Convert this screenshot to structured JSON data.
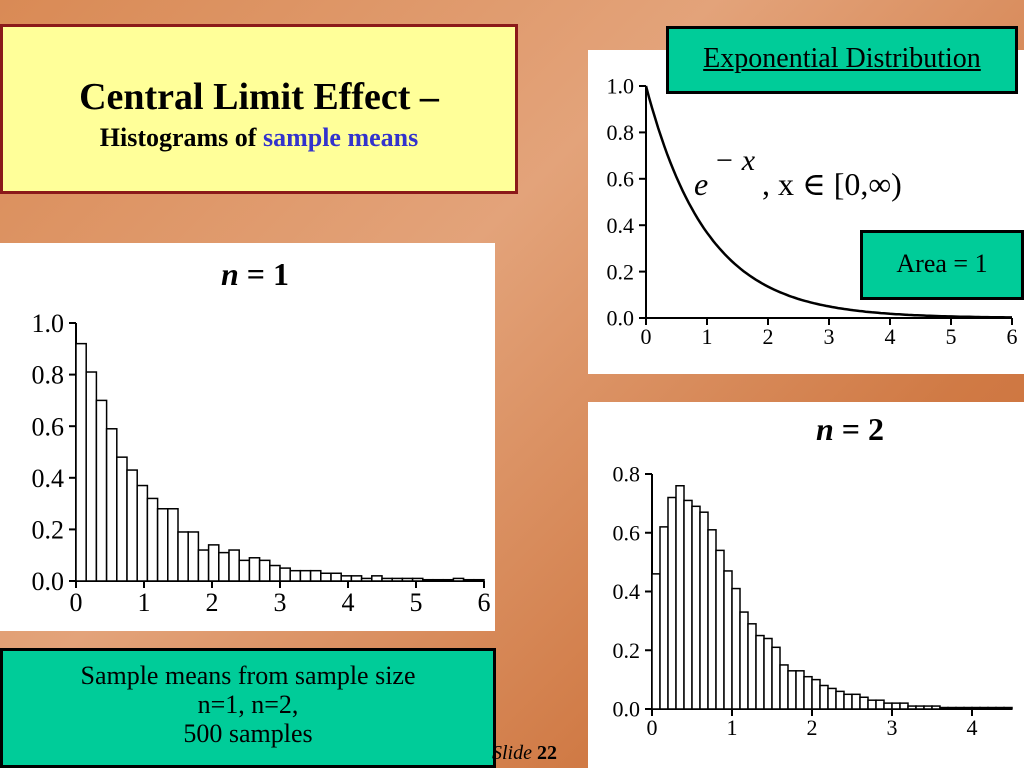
{
  "title": {
    "main": "Central Limit Effect –",
    "sub_prefix": "Histograms of ",
    "sub_highlight": "sample means"
  },
  "expo_label": "Exponential Distribution",
  "formula": {
    "e": "e",
    "exp": "− x",
    "rest": ",  x ∈ [0,∞)"
  },
  "area_label": "Area = 1",
  "sample_box": {
    "line1": "Sample means from sample size",
    "line2": "n=1, n=2,",
    "line3": "500 samples"
  },
  "slide": {
    "word": "Slide",
    "number": "22"
  },
  "colors": {
    "title_bg": "#ffff99",
    "title_border": "#8b1a1a",
    "highlight": "#3333cc",
    "label_bg": "#00cc99"
  },
  "chart_data": [
    {
      "id": "exp_curve",
      "type": "line",
      "function": "e^(-x)",
      "xlim": [
        0,
        6
      ],
      "ylim": [
        0,
        1
      ],
      "xticks": [
        "0",
        "1",
        "2",
        "3",
        "4",
        "5",
        "6"
      ],
      "yticks": [
        "0.0",
        "0.2",
        "0.4",
        "0.6",
        "0.8",
        "1.0"
      ]
    },
    {
      "id": "n1",
      "type": "bar",
      "title_n": "n",
      "title_eq": " = 1",
      "bin_width": 0.15,
      "xlim": [
        0,
        6
      ],
      "ylim": [
        0,
        1
      ],
      "xticks": [
        "0",
        "1",
        "2",
        "3",
        "4",
        "5",
        "6"
      ],
      "yticks": [
        "0.0",
        "0.2",
        "0.4",
        "0.6",
        "0.8",
        "1.0"
      ],
      "values": [
        0.92,
        0.81,
        0.7,
        0.59,
        0.48,
        0.43,
        0.37,
        0.32,
        0.28,
        0.28,
        0.19,
        0.19,
        0.12,
        0.14,
        0.11,
        0.12,
        0.08,
        0.09,
        0.08,
        0.06,
        0.05,
        0.04,
        0.04,
        0.04,
        0.03,
        0.03,
        0.02,
        0.02,
        0.01,
        0.02,
        0.01,
        0.01,
        0.01,
        0.01,
        0.005,
        0.005,
        0.005,
        0.01,
        0.005,
        0.005
      ]
    },
    {
      "id": "n2",
      "type": "bar",
      "title_n": "n",
      "title_eq": " = 2",
      "bin_width": 0.1,
      "xlim": [
        0,
        4.5
      ],
      "ylim": [
        0,
        0.8
      ],
      "xticks": [
        "0",
        "1",
        "2",
        "3",
        "4"
      ],
      "yticks": [
        "0.0",
        "0.2",
        "0.4",
        "0.6",
        "0.8"
      ],
      "values": [
        0.46,
        0.62,
        0.72,
        0.76,
        0.71,
        0.69,
        0.67,
        0.61,
        0.54,
        0.47,
        0.41,
        0.33,
        0.29,
        0.25,
        0.24,
        0.21,
        0.15,
        0.13,
        0.13,
        0.11,
        0.1,
        0.08,
        0.07,
        0.06,
        0.05,
        0.05,
        0.04,
        0.03,
        0.03,
        0.02,
        0.02,
        0.02,
        0.01,
        0.01,
        0.01,
        0.01,
        0.005,
        0.005,
        0.005,
        0.005,
        0.005,
        0.005,
        0.005,
        0.005,
        0.005
      ]
    }
  ]
}
